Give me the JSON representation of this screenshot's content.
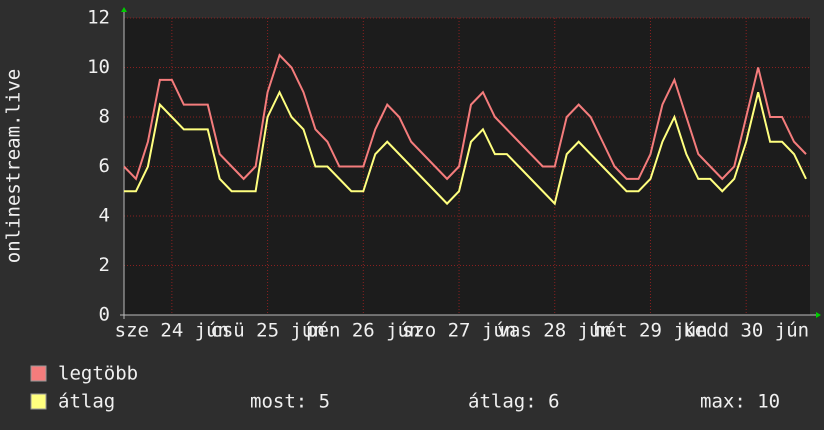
{
  "chart_data": {
    "type": "line",
    "ylabel": "onlinestream.live",
    "xlim": [
      0,
      172
    ],
    "xticks": [
      {
        "value": 12,
        "label": "sze 24 jún"
      },
      {
        "value": 36,
        "label": "csü 25 jún"
      },
      {
        "value": 60,
        "label": "pén 26 jún"
      },
      {
        "value": 84,
        "label": "szo 27 jún"
      },
      {
        "value": 108,
        "label": "vas 28 jún"
      },
      {
        "value": 132,
        "label": "hét 29 jún"
      },
      {
        "value": 156,
        "label": "kedd 30 jún"
      }
    ],
    "ylim": [
      0,
      12
    ],
    "yticks": [
      0,
      2,
      4,
      6,
      8,
      10,
      12
    ],
    "grid": true,
    "x": [
      0,
      3,
      6,
      9,
      12,
      15,
      18,
      21,
      24,
      27,
      30,
      33,
      36,
      39,
      42,
      45,
      48,
      51,
      54,
      57,
      60,
      63,
      66,
      69,
      72,
      75,
      78,
      81,
      84,
      87,
      90,
      93,
      96,
      99,
      102,
      105,
      108,
      111,
      114,
      117,
      120,
      123,
      126,
      129,
      132,
      135,
      138,
      141,
      144,
      147,
      150,
      153,
      156,
      159,
      162,
      165,
      168,
      171
    ],
    "series": [
      {
        "name": "legtöbb",
        "color": "#f47c7c",
        "values": [
          6,
          5.5,
          7,
          9.5,
          9.5,
          8.5,
          8.5,
          8.5,
          6.5,
          6,
          5.5,
          6,
          9,
          10.5,
          10,
          9,
          7.5,
          7,
          6,
          6,
          6,
          7.5,
          8.5,
          8,
          7,
          6.5,
          6,
          5.5,
          6,
          8.5,
          9,
          8,
          7.5,
          7,
          6.5,
          6,
          6,
          8,
          8.5,
          8,
          7,
          6,
          5.5,
          5.5,
          6.5,
          8.5,
          9.5,
          8,
          6.5,
          6,
          5.5,
          6,
          8,
          10,
          8,
          8,
          7,
          6.5
        ]
      },
      {
        "name": "átlag",
        "color": "#ffff7f",
        "values": [
          5,
          5,
          6,
          8.5,
          8,
          7.5,
          7.5,
          7.5,
          5.5,
          5,
          5,
          5,
          8,
          9,
          8,
          7.5,
          6,
          6,
          5.5,
          5,
          5,
          6.5,
          7,
          6.5,
          6,
          5.5,
          5,
          4.5,
          5,
          7,
          7.5,
          6.5,
          6.5,
          6,
          5.5,
          5,
          4.5,
          6.5,
          7,
          6.5,
          6,
          5.5,
          5,
          5,
          5.5,
          7,
          8,
          6.5,
          5.5,
          5.5,
          5,
          5.5,
          7,
          9,
          7,
          7,
          6.5,
          5.5
        ]
      }
    ],
    "stats": [
      "most: 5",
      "átlag: 6",
      "max: 10"
    ]
  }
}
